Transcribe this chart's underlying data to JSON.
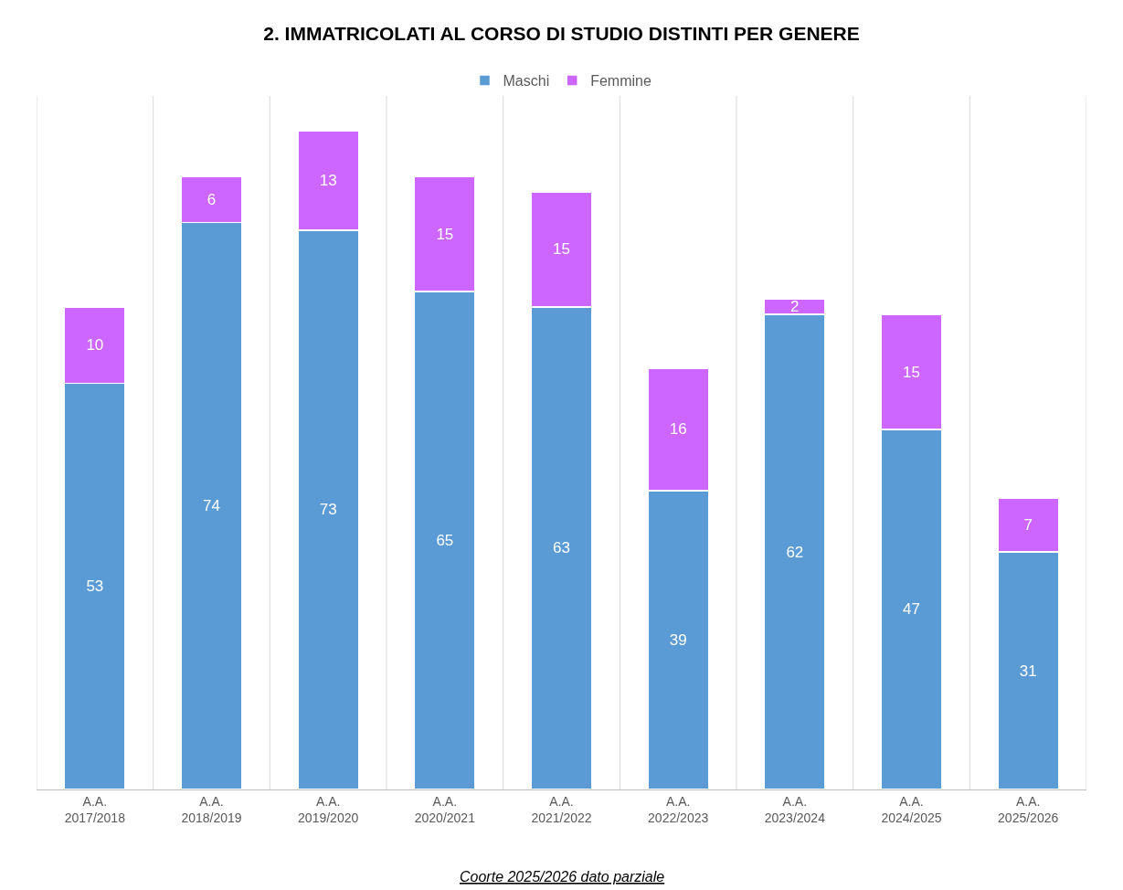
{
  "chart_data": {
    "type": "bar",
    "title": "2. IMMATRICOLATI AL CORSO DI STUDIO DISTINTI PER GENERE",
    "categories": [
      "A.A. 2017/2018",
      "A.A. 2018/2019",
      "A.A. 2019/2020",
      "A.A. 2020/2021",
      "A.A. 2021/2022",
      "A.A. 2022/2023",
      "A.A. 2023/2024",
      "A.A. 2024/2025",
      "A.A. 2025/2026"
    ],
    "series": [
      {
        "name": "Maschi",
        "color": "#5b9bd5",
        "values": [
          53,
          74,
          73,
          65,
          63,
          39,
          62,
          47,
          31
        ]
      },
      {
        "name": "Femmine",
        "color": "#cc66ff",
        "values": [
          10,
          6,
          13,
          15,
          15,
          16,
          2,
          15,
          7
        ]
      }
    ],
    "stacked": true,
    "data_labels": true,
    "grid": "x",
    "legend": "top",
    "annotations": [
      "Coorte 2025/2026 dato parziale"
    ]
  }
}
